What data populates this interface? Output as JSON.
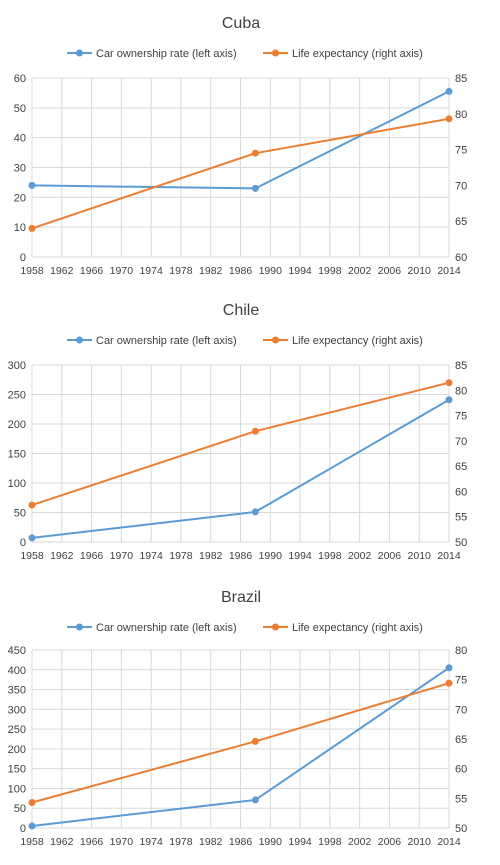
{
  "chart_data": [
    {
      "type": "line",
      "title": "Cuba",
      "x": [
        1958,
        1988,
        2014
      ],
      "x_ticks": [
        1958,
        1962,
        1966,
        1970,
        1974,
        1978,
        1982,
        1986,
        1990,
        1994,
        1998,
        2002,
        2006,
        2010,
        2014
      ],
      "left_axis": {
        "ylim": [
          0,
          60
        ],
        "ticks": [
          0,
          10,
          20,
          30,
          40,
          50,
          60
        ]
      },
      "right_axis": {
        "ylim": [
          60,
          85
        ],
        "ticks": [
          60,
          65,
          70,
          75,
          80,
          85
        ]
      },
      "series": [
        {
          "name": "Car ownership rate (left axis)",
          "axis": "left",
          "color": "#5b9bd5",
          "values": [
            24,
            23,
            55.5
          ]
        },
        {
          "name": "Life expectancy (right axis)",
          "axis": "right",
          "color": "#ed7d31",
          "values": [
            64,
            74.5,
            79.3
          ]
        }
      ],
      "legend": "top",
      "grid": true
    },
    {
      "type": "line",
      "title": "Chile",
      "x": [
        1958,
        1988,
        2014
      ],
      "x_ticks": [
        1958,
        1962,
        1966,
        1970,
        1974,
        1978,
        1982,
        1986,
        1990,
        1994,
        1998,
        2002,
        2006,
        2010,
        2014
      ],
      "left_axis": {
        "ylim": [
          0,
          300
        ],
        "ticks": [
          0,
          50,
          100,
          150,
          200,
          250,
          300
        ]
      },
      "right_axis": {
        "ylim": [
          50,
          85
        ],
        "ticks": [
          50,
          55,
          60,
          65,
          70,
          75,
          80,
          85
        ]
      },
      "series": [
        {
          "name": "Car ownership rate (left axis)",
          "axis": "left",
          "color": "#5b9bd5",
          "values": [
            7,
            51,
            241
          ]
        },
        {
          "name": "Life expectancy (right axis)",
          "axis": "right",
          "color": "#ed7d31",
          "values": [
            57.3,
            71.9,
            81.5
          ]
        }
      ],
      "legend": "top",
      "grid": true
    },
    {
      "type": "line",
      "title": "Brazil",
      "x": [
        1958,
        1988,
        2014
      ],
      "x_ticks": [
        1958,
        1962,
        1966,
        1970,
        1974,
        1978,
        1982,
        1986,
        1990,
        1994,
        1998,
        2002,
        2006,
        2010,
        2014
      ],
      "left_axis": {
        "ylim": [
          0,
          450
        ],
        "ticks": [
          0,
          50,
          100,
          150,
          200,
          250,
          300,
          350,
          400,
          450
        ]
      },
      "right_axis": {
        "ylim": [
          50,
          80
        ],
        "ticks": [
          50,
          55,
          60,
          65,
          70,
          75,
          80
        ]
      },
      "series": [
        {
          "name": "Car ownership rate (left axis)",
          "axis": "left",
          "color": "#5b9bd5",
          "values": [
            5,
            71,
            405
          ]
        },
        {
          "name": "Life expectancy (right axis)",
          "axis": "right",
          "color": "#ed7d31",
          "values": [
            54.3,
            64.6,
            74.4
          ]
        }
      ],
      "legend": "top",
      "grid": true
    }
  ],
  "colors": {
    "grid": "#d9d9d9",
    "axis_text": "#404040",
    "title_text": "#404040"
  }
}
